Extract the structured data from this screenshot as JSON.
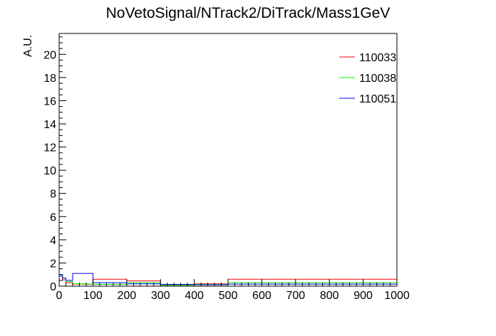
{
  "chart_data": {
    "type": "histogram",
    "title": "NoVetoSignal/NTrack2/DiTrack/Mass1GeV",
    "xlabel": "",
    "ylabel": "A.U.",
    "xlim": [
      0,
      1000
    ],
    "ylim": [
      0,
      21.8
    ],
    "x_ticks": [
      0,
      100,
      200,
      300,
      400,
      500,
      600,
      700,
      800,
      900,
      1000
    ],
    "y_ticks": [
      0,
      2,
      4,
      6,
      8,
      10,
      12,
      14,
      16,
      18,
      20
    ],
    "legend_position": "top-right",
    "grid": false,
    "series": [
      {
        "name": "110033",
        "color": "#ff0000",
        "bins": [
          {
            "x0": 0,
            "x1": 10,
            "y": 0.85
          },
          {
            "x0": 10,
            "x1": 20,
            "y": 0.55
          },
          {
            "x0": 20,
            "x1": 40,
            "y": 0.3
          },
          {
            "x0": 40,
            "x1": 100,
            "y": 0.18
          },
          {
            "x0": 100,
            "x1": 200,
            "y": 0.6
          },
          {
            "x0": 200,
            "x1": 300,
            "y": 0.45
          },
          {
            "x0": 300,
            "x1": 400,
            "y": 0.12
          },
          {
            "x0": 400,
            "x1": 500,
            "y": 0.2
          },
          {
            "x0": 500,
            "x1": 1000,
            "y": 0.6
          }
        ]
      },
      {
        "name": "110038",
        "color": "#00ff00",
        "bins": [
          {
            "x0": 0,
            "x1": 10,
            "y": 0.95
          },
          {
            "x0": 10,
            "x1": 20,
            "y": 0.7
          },
          {
            "x0": 20,
            "x1": 40,
            "y": 0.4
          },
          {
            "x0": 40,
            "x1": 100,
            "y": 0.2
          },
          {
            "x0": 100,
            "x1": 200,
            "y": 0.15
          },
          {
            "x0": 200,
            "x1": 300,
            "y": 0.3
          },
          {
            "x0": 300,
            "x1": 400,
            "y": 0.08
          },
          {
            "x0": 400,
            "x1": 500,
            "y": 0.15
          },
          {
            "x0": 500,
            "x1": 1000,
            "y": 0.3
          }
        ]
      },
      {
        "name": "110051",
        "color": "#0000ff",
        "bins": [
          {
            "x0": 0,
            "x1": 10,
            "y": 1.0
          },
          {
            "x0": 10,
            "x1": 20,
            "y": 0.7
          },
          {
            "x0": 20,
            "x1": 40,
            "y": 0.5
          },
          {
            "x0": 40,
            "x1": 100,
            "y": 1.1
          },
          {
            "x0": 100,
            "x1": 200,
            "y": 0.3
          },
          {
            "x0": 200,
            "x1": 300,
            "y": 0.2
          },
          {
            "x0": 300,
            "x1": 400,
            "y": 0.15
          },
          {
            "x0": 400,
            "x1": 500,
            "y": 0.12
          },
          {
            "x0": 500,
            "x1": 1000,
            "y": 0.18
          }
        ]
      }
    ]
  }
}
